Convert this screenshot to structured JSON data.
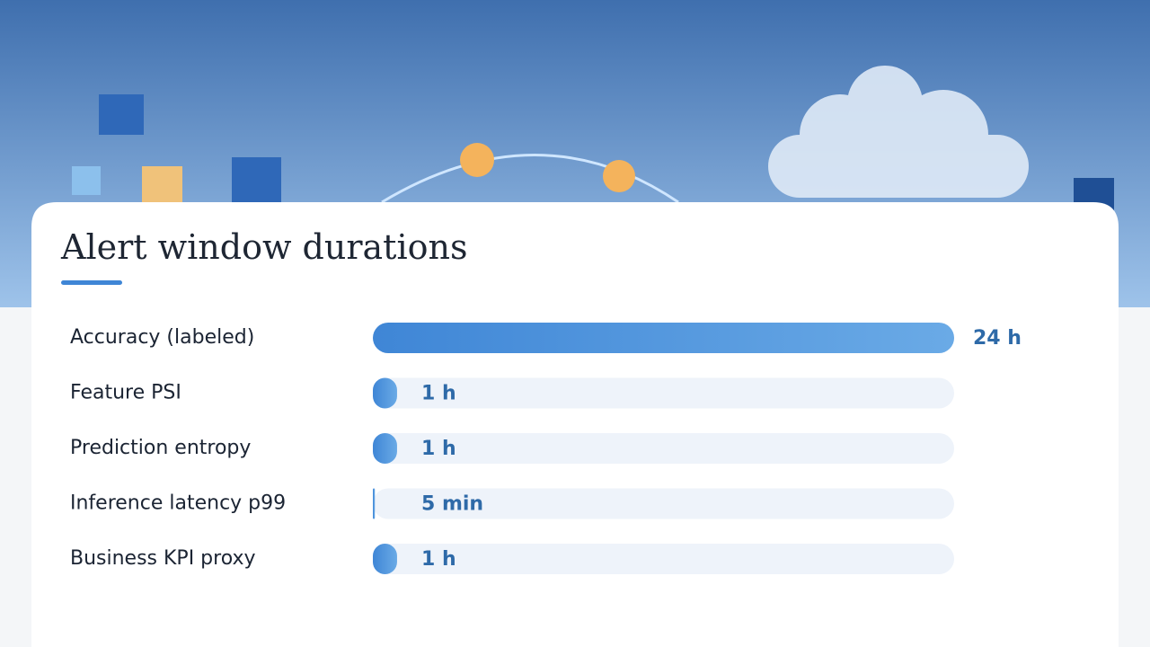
{
  "chart_data": {
    "type": "bar",
    "orientation": "horizontal",
    "title": "Alert window durations",
    "categories": [
      "Accuracy (labeled)",
      "Feature PSI",
      "Prediction entropy",
      "Inference latency p99",
      "Business KPI proxy"
    ],
    "values": [
      24,
      1,
      1,
      0.0833,
      1
    ],
    "value_labels": [
      "24 h",
      "1 h",
      "1 h",
      "5 min",
      "1 h"
    ],
    "color": "#4a90d9",
    "xlim": [
      0,
      24
    ]
  }
}
